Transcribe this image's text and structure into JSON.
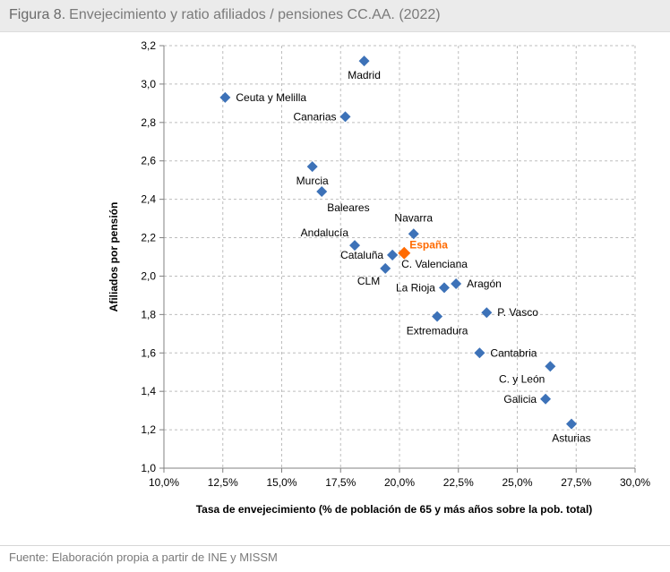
{
  "header": {
    "figure_label": "Figura 8.",
    "title": "Envejecimiento y ratio afiliados / pensiones CC.AA. (2022)"
  },
  "footer": {
    "source": "Fuente: Elaboración propia a partir de INE y MISSM"
  },
  "chart_data": {
    "type": "scatter",
    "xlabel": "Tasa de envejecimiento (% de población de 65 y más años sobre la pob. total)",
    "ylabel": "Afiliados por pensión",
    "xlim": [
      10.0,
      30.0
    ],
    "ylim": [
      1.0,
      3.2
    ],
    "x_ticks": [
      "10,0%",
      "12,5%",
      "15,0%",
      "17,5%",
      "20,0%",
      "22,5%",
      "25,0%",
      "27,5%",
      "30,0%"
    ],
    "y_ticks": [
      "1,0",
      "1,2",
      "1,4",
      "1,6",
      "1,8",
      "2,0",
      "2,2",
      "2,4",
      "2,6",
      "2,8",
      "3,0",
      "3,2"
    ],
    "grid": true,
    "marker_color": "#3d72b8",
    "highlight_color": "#ff6a00",
    "points": [
      {
        "label": "Madrid",
        "x": 18.5,
        "y": 3.12,
        "label_pos": "below"
      },
      {
        "label": "Ceuta y Melilla",
        "x": 12.6,
        "y": 2.93,
        "label_pos": "right"
      },
      {
        "label": "Canarias",
        "x": 17.7,
        "y": 2.83,
        "label_pos": "left"
      },
      {
        "label": "Murcia",
        "x": 16.3,
        "y": 2.57,
        "label_pos": "below"
      },
      {
        "label": "Baleares",
        "x": 16.7,
        "y": 2.44,
        "label_pos": "below-right"
      },
      {
        "label": "Navarra",
        "x": 20.6,
        "y": 2.22,
        "label_pos": "above"
      },
      {
        "label": "Andalucía",
        "x": 18.1,
        "y": 2.16,
        "label_pos": "above-left"
      },
      {
        "label": "España",
        "x": 20.2,
        "y": 2.12,
        "label_pos": "above-right",
        "highlight": true
      },
      {
        "label": "C. Valenciana",
        "x": 19.7,
        "y": 2.11,
        "label_pos": "right-below"
      },
      {
        "label": "Cataluña",
        "x": 19.7,
        "y": 2.11,
        "label_pos": "left"
      },
      {
        "label": "CLM",
        "x": 19.4,
        "y": 2.04,
        "label_pos": "below-left"
      },
      {
        "label": "Aragón",
        "x": 22.4,
        "y": 1.96,
        "label_pos": "right"
      },
      {
        "label": "La Rioja",
        "x": 21.9,
        "y": 1.94,
        "label_pos": "left"
      },
      {
        "label": "P. Vasco",
        "x": 23.7,
        "y": 1.81,
        "label_pos": "right"
      },
      {
        "label": "Extremadura",
        "x": 21.6,
        "y": 1.79,
        "label_pos": "below"
      },
      {
        "label": "Cantabria",
        "x": 23.4,
        "y": 1.6,
        "label_pos": "right"
      },
      {
        "label": "C. y León",
        "x": 26.4,
        "y": 1.53,
        "label_pos": "below-left"
      },
      {
        "label": "Galicia",
        "x": 26.2,
        "y": 1.36,
        "label_pos": "left"
      },
      {
        "label": "Asturias",
        "x": 27.3,
        "y": 1.23,
        "label_pos": "below"
      }
    ]
  }
}
